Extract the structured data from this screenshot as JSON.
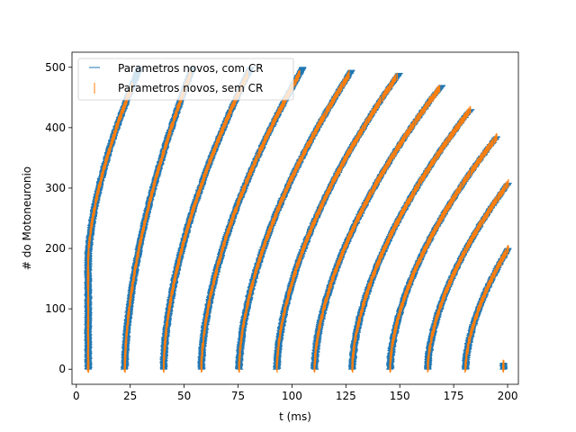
{
  "chart_data": {
    "type": "scatter",
    "xlabel": "t (ms)",
    "ylabel": "# do Motoneuronio",
    "xlim": [
      -2,
      205
    ],
    "ylim": [
      -25,
      525
    ],
    "xticks": [
      0,
      25,
      50,
      75,
      100,
      125,
      150,
      175,
      200
    ],
    "yticks": [
      0,
      100,
      200,
      300,
      400,
      500
    ],
    "grid": false,
    "legend": {
      "placement": "top-left"
    },
    "series": [
      {
        "name": "Parametros novos, com CR",
        "marker": "_",
        "color": "#1f77b4",
        "firing_waves": [
          {
            "onset": 5.5,
            "k": 0.52,
            "top": 500
          },
          {
            "onset": 22.5,
            "k": 0.27,
            "top": 500
          },
          {
            "onset": 40.5,
            "k": 0.21,
            "top": 500
          },
          {
            "onset": 58.0,
            "k": 0.18,
            "top": 500
          },
          {
            "onset": 75.5,
            "k": 0.16,
            "top": 495
          },
          {
            "onset": 93.0,
            "k": 0.145,
            "top": 490
          },
          {
            "onset": 110.5,
            "k": 0.13,
            "top": 470
          },
          {
            "onset": 128.0,
            "k": 0.12,
            "top": 430
          },
          {
            "onset": 145.5,
            "k": 0.11,
            "top": 385
          },
          {
            "onset": 163.0,
            "k": 0.1,
            "top": 330
          },
          {
            "onset": 180.5,
            "k": 0.09,
            "top": 265
          },
          {
            "onset": 198.0,
            "k": 0.085,
            "top": 10
          }
        ]
      },
      {
        "name": "Parametros novos, sem CR",
        "marker": "|",
        "color": "#ff7f0e",
        "firing_waves": [
          {
            "onset": 5.5,
            "k": 0.52,
            "top": 470
          },
          {
            "onset": 22.5,
            "k": 0.27,
            "top": 490
          },
          {
            "onset": 40.5,
            "k": 0.21,
            "top": 490
          },
          {
            "onset": 58.0,
            "k": 0.18,
            "top": 490
          },
          {
            "onset": 75.5,
            "k": 0.16,
            "top": 490
          },
          {
            "onset": 93.0,
            "k": 0.145,
            "top": 485
          },
          {
            "onset": 110.5,
            "k": 0.13,
            "top": 465
          },
          {
            "onset": 128.0,
            "k": 0.12,
            "top": 430
          },
          {
            "onset": 145.5,
            "k": 0.11,
            "top": 385
          },
          {
            "onset": 163.0,
            "k": 0.1,
            "top": 330
          },
          {
            "onset": 180.5,
            "k": 0.09,
            "top": 265
          },
          {
            "onset": 198.0,
            "k": 0.085,
            "top": 10
          }
        ]
      }
    ]
  }
}
